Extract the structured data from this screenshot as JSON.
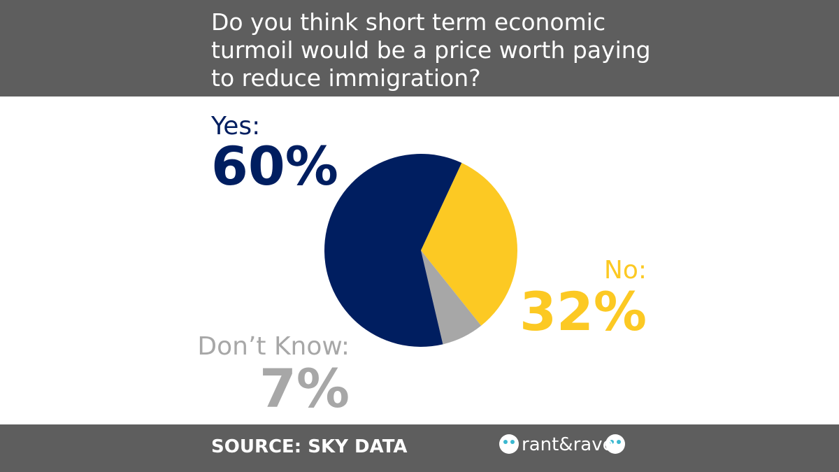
{
  "chart_data": {
    "type": "pie",
    "title": "Do you think short term economic turmoil would be a price worth paying to reduce immigration?",
    "categories": [
      "Yes:",
      "No:",
      "Don’t Know:"
    ],
    "values": [
      60,
      32,
      7
    ],
    "value_labels": [
      "60%",
      "32%",
      "7%"
    ],
    "colors": [
      "#001e60",
      "#fcc923",
      "#a7a7a7"
    ],
    "source": "SOURCE: SKY DATA"
  },
  "logo": "rant&rave"
}
